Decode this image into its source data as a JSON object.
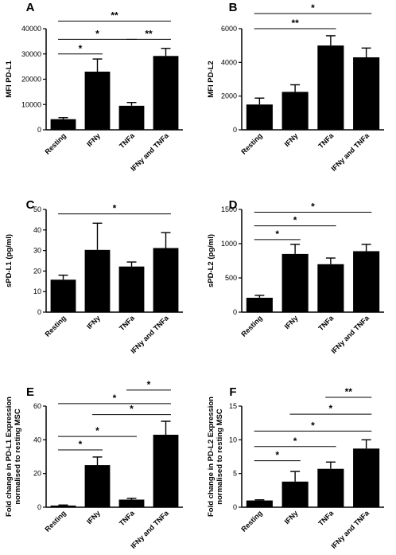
{
  "chart_data": [
    {
      "panel": "A",
      "type": "bar",
      "categories": [
        "Resting",
        "IFNy",
        "TNFa",
        "IFNy and TNFa"
      ],
      "values": [
        4200,
        23000,
        9500,
        29200
      ],
      "errors": [
        600,
        5000,
        1300,
        3000
      ],
      "ylabel": "MFI PD-L1",
      "ylim": [
        0,
        40000
      ],
      "yticks": [
        0,
        10000,
        20000,
        30000,
        40000
      ],
      "significance": [
        {
          "from": 0,
          "to": 1,
          "label": "*",
          "y": 30000
        },
        {
          "from": 0,
          "to": 2,
          "label": "*",
          "y": 35800
        },
        {
          "from": 2,
          "to": 3,
          "label": "**",
          "y": 35800
        },
        {
          "from": 0,
          "to": 3,
          "label": "**",
          "y": 43000
        }
      ]
    },
    {
      "panel": "B",
      "type": "bar",
      "categories": [
        "Resting",
        "IFNy",
        "TNFa",
        "IFNy and TNFa"
      ],
      "values": [
        1500,
        2250,
        5000,
        4300
      ],
      "errors": [
        380,
        420,
        580,
        550
      ],
      "ylabel": "MFI PD-L2",
      "ylim": [
        0,
        6000
      ],
      "yticks": [
        0,
        2000,
        4000,
        6000
      ],
      "significance": [
        {
          "from": 0,
          "to": 2,
          "label": "**",
          "y": 6000
        },
        {
          "from": 0,
          "to": 3,
          "label": "*",
          "y": 6900
        }
      ]
    },
    {
      "panel": "C",
      "type": "bar",
      "categories": [
        "Resting",
        "IFNy",
        "TNFa",
        "IFNy and TNFa"
      ],
      "values": [
        15.8,
        30.3,
        22.2,
        31.2
      ],
      "errors": [
        2.2,
        13.0,
        2.2,
        7.5
      ],
      "ylabel": "sPD-L1 (pg/ml)",
      "ylim": [
        0,
        50
      ],
      "yticks": [
        0,
        10,
        20,
        30,
        40,
        50
      ],
      "significance": [
        {
          "from": 0,
          "to": 3,
          "label": "*",
          "y": 47.8
        }
      ]
    },
    {
      "panel": "D",
      "type": "bar",
      "categories": [
        "Resting",
        "IFNy",
        "TNFa",
        "IFNy and TNFa"
      ],
      "values": [
        210,
        850,
        700,
        890
      ],
      "errors": [
        35,
        140,
        90,
        100
      ],
      "ylabel": "sPD-L2 (pg/ml)",
      "ylim": [
        0,
        1500
      ],
      "yticks": [
        0,
        500,
        1000,
        1500
      ],
      "significance": [
        {
          "from": 0,
          "to": 1,
          "label": "*",
          "y": 1060
        },
        {
          "from": 0,
          "to": 2,
          "label": "*",
          "y": 1260
        },
        {
          "from": 0,
          "to": 3,
          "label": "*",
          "y": 1460
        }
      ]
    },
    {
      "panel": "E",
      "type": "bar",
      "categories": [
        "Resting",
        "IFNy",
        "TNFa",
        "IFNy and TNFa"
      ],
      "values": [
        1,
        25,
        4.5,
        43
      ],
      "errors": [
        0.3,
        4.8,
        0.8,
        8
      ],
      "ylabel": "Fold change in PD-L1 Expression\nnormalised to resting MSC",
      "ylim": [
        0,
        60
      ],
      "yticks": [
        0,
        20,
        40,
        60
      ],
      "significance": [
        {
          "from": 0,
          "to": 1,
          "label": "*",
          "y": 34
        },
        {
          "from": 0,
          "to": 2,
          "label": "*",
          "y": 42
        },
        {
          "from": 1,
          "to": 3,
          "label": "*",
          "y": 55
        },
        {
          "from": 0,
          "to": 3,
          "label": "*",
          "y": 61.5
        },
        {
          "from": 2,
          "to": 3,
          "label": "*",
          "y": 69.5
        }
      ]
    },
    {
      "panel": "F",
      "type": "bar",
      "categories": [
        "Resting",
        "IFNy",
        "TNFa",
        "IFNy and TNFa"
      ],
      "values": [
        1,
        3.8,
        5.7,
        8.7
      ],
      "errors": [
        0.1,
        1.5,
        1.0,
        1.3
      ],
      "ylabel": "Fold change in PD-L2 Expression\nnormalised to resting MSC",
      "ylim": [
        0,
        15
      ],
      "yticks": [
        0,
        5,
        10,
        15
      ],
      "significance": [
        {
          "from": 0,
          "to": 1,
          "label": "*",
          "y": 6.9
        },
        {
          "from": 0,
          "to": 2,
          "label": "*",
          "y": 9.0
        },
        {
          "from": 0,
          "to": 3,
          "label": "*",
          "y": 11.3
        },
        {
          "from": 1,
          "to": 3,
          "label": "*",
          "y": 13.8
        },
        {
          "from": 2,
          "to": 3,
          "label": "**",
          "y": 16.3
        }
      ]
    }
  ]
}
